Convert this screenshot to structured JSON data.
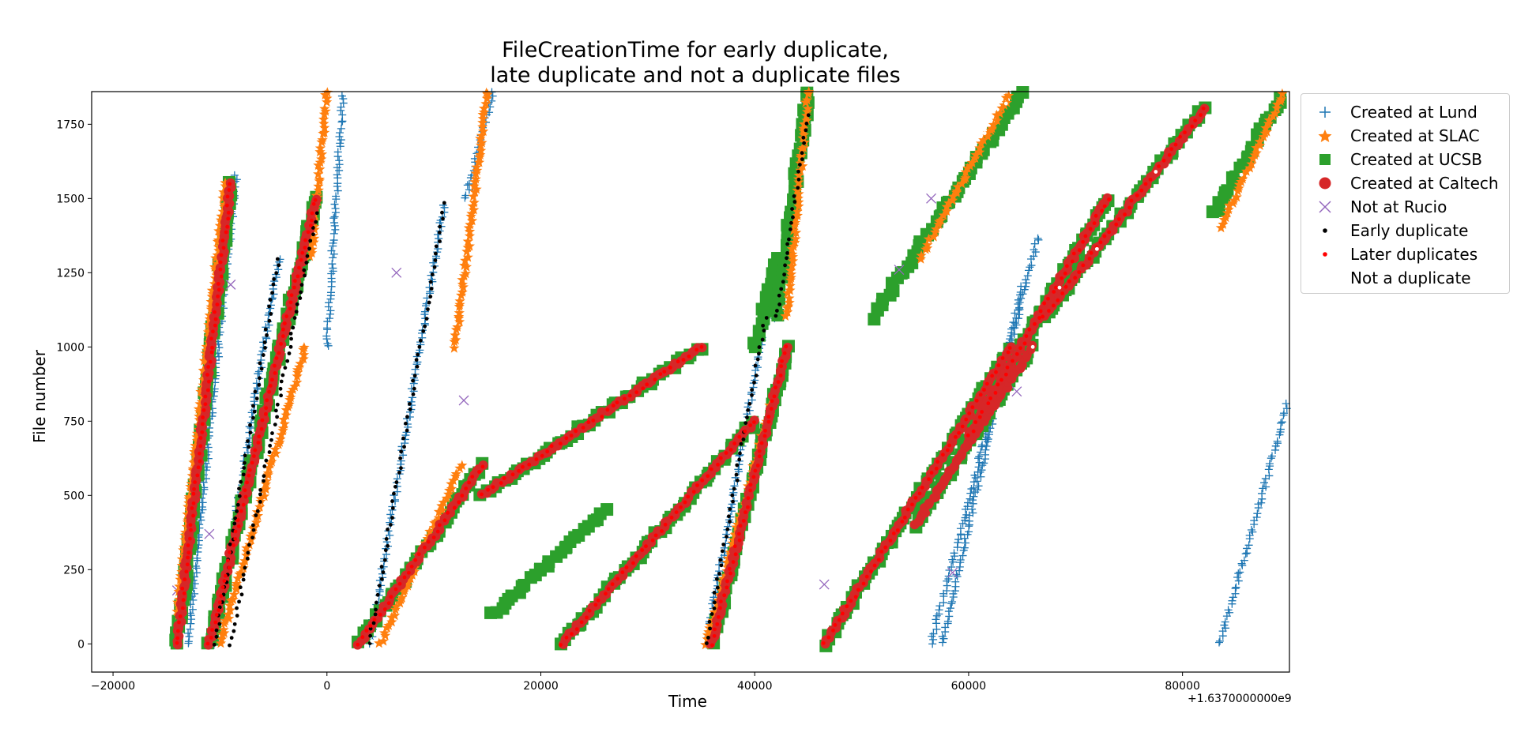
{
  "chart_data": {
    "type": "scatter",
    "title_line1": "FileCreationTime for early duplicate,",
    "title_line2": "late duplicate and not a duplicate files",
    "xlabel": "Time",
    "ylabel": "File number",
    "x_offset_label": "+1.6370000000e9",
    "xlim": [
      -22000,
      90000
    ],
    "ylim": [
      -95,
      1860
    ],
    "xticks": [
      -20000,
      0,
      20000,
      40000,
      60000,
      80000
    ],
    "xtick_labels": [
      "−20000",
      "0",
      "20000",
      "40000",
      "60000",
      "80000"
    ],
    "yticks": [
      0,
      250,
      500,
      750,
      1000,
      1250,
      1500,
      1750
    ],
    "ytick_labels": [
      "0",
      "250",
      "500",
      "750",
      "1000",
      "1250",
      "1500",
      "1750"
    ],
    "grid": false,
    "legend_placement": "outside right, top",
    "legend": [
      {
        "label": "Created at Lund",
        "marker": "plus",
        "color": "#1f77b4"
      },
      {
        "label": "Created at SLAC",
        "marker": "star",
        "color": "#ff7f0e"
      },
      {
        "label": "Created at UCSB",
        "marker": "square",
        "color": "#2ca02c"
      },
      {
        "label": "Created at Caltech",
        "marker": "circle",
        "color": "#d62728"
      },
      {
        "label": "Not at Rucio",
        "marker": "x",
        "color": "#9467bd"
      },
      {
        "label": "Early duplicate",
        "marker": "dot",
        "color": "#000000"
      },
      {
        "label": "Later duplicates",
        "marker": "dot",
        "color": "#ff0000"
      },
      {
        "label": "Not a duplicate",
        "marker": "dot",
        "color": "#ffffff"
      }
    ],
    "series": [
      {
        "name": "Created at Lund",
        "marker": "plus",
        "color": "#1f77b4",
        "segments": [
          [
            [
              -13000,
              0
            ],
            [
              -8500,
              1580
            ]
          ],
          [
            [
              -10500,
              0
            ],
            [
              -4500,
              1300
            ]
          ],
          [
            [
              0,
              1000
            ],
            [
              1500,
              1860
            ]
          ],
          [
            [
              4000,
              0
            ],
            [
              11000,
              1480
            ]
          ],
          [
            [
              13000,
              1500
            ],
            [
              15500,
              1860
            ]
          ],
          [
            [
              35500,
              0
            ],
            [
              41000,
              1100
            ]
          ],
          [
            [
              42000,
              1100
            ],
            [
              45000,
              1860
            ]
          ],
          [
            [
              56500,
              0
            ],
            [
              66500,
              1370
            ]
          ],
          [
            [
              57500,
              0
            ],
            [
              65000,
              1200
            ]
          ],
          [
            [
              83500,
              0
            ],
            [
              90000,
              830
            ]
          ]
        ]
      },
      {
        "name": "Created at SLAC",
        "marker": "star",
        "color": "#ff7f0e",
        "segments": [
          [
            [
              -14000,
              100
            ],
            [
              -9500,
              1550
            ]
          ],
          [
            [
              -10000,
              0
            ],
            [
              -2000,
              1000
            ]
          ],
          [
            [
              -1500,
              1300
            ],
            [
              0,
              1860
            ]
          ],
          [
            [
              5000,
              0
            ],
            [
              12500,
              600
            ]
          ],
          [
            [
              12000,
              1000
            ],
            [
              15000,
              1860
            ]
          ],
          [
            [
              35500,
              0
            ],
            [
              41500,
              800
            ]
          ],
          [
            [
              43000,
              1100
            ],
            [
              45000,
              1860
            ]
          ],
          [
            [
              55500,
              1300
            ],
            [
              64000,
              1860
            ]
          ],
          [
            [
              83500,
              1400
            ],
            [
              89500,
              1860
            ]
          ]
        ]
      },
      {
        "name": "Created at UCSB",
        "marker": "square",
        "color": "#2ca02c",
        "segments": [
          [
            [
              -14000,
              0
            ],
            [
              -9000,
              1550
            ]
          ],
          [
            [
              -11000,
              0
            ],
            [
              -1000,
              1500
            ]
          ],
          [
            [
              3000,
              0
            ],
            [
              14500,
              600
            ]
          ],
          [
            [
              14500,
              500
            ],
            [
              35000,
              1000
            ]
          ],
          [
            [
              15500,
              100
            ],
            [
              26000,
              450
            ]
          ],
          [
            [
              22000,
              0
            ],
            [
              40000,
              750
            ]
          ],
          [
            [
              36000,
              0
            ],
            [
              43000,
              1000
            ]
          ],
          [
            [
              40000,
              1000
            ],
            [
              42000,
              1300
            ]
          ],
          [
            [
              42000,
              1100
            ],
            [
              45000,
              1860
            ]
          ],
          [
            [
              46500,
              0
            ],
            [
              64000,
              1000
            ]
          ],
          [
            [
              51000,
              1100
            ],
            [
              65000,
              1860
            ]
          ],
          [
            [
              55000,
              400
            ],
            [
              66000,
              1000
            ]
          ],
          [
            [
              60000,
              700
            ],
            [
              73000,
              1500
            ]
          ],
          [
            [
              67000,
              1100
            ],
            [
              82000,
              1800
            ]
          ],
          [
            [
              83000,
              1450
            ],
            [
              89500,
              1860
            ]
          ]
        ]
      },
      {
        "name": "Created at Caltech",
        "marker": "circle",
        "color": "#d62728",
        "segments": [
          [
            [
              -14000,
              0
            ],
            [
              -9000,
              1550
            ]
          ],
          [
            [
              -11000,
              0
            ],
            [
              -1000,
              1500
            ]
          ],
          [
            [
              3000,
              0
            ],
            [
              14500,
              600
            ]
          ],
          [
            [
              14500,
              500
            ],
            [
              35000,
              1000
            ]
          ],
          [
            [
              22000,
              0
            ],
            [
              40000,
              750
            ]
          ],
          [
            [
              36000,
              0
            ],
            [
              43000,
              1000
            ]
          ],
          [
            [
              46500,
              0
            ],
            [
              64000,
              1000
            ]
          ],
          [
            [
              55000,
              400
            ],
            [
              66000,
              1000
            ]
          ],
          [
            [
              60000,
              700
            ],
            [
              73000,
              1500
            ]
          ],
          [
            [
              67000,
              1100
            ],
            [
              82000,
              1800
            ]
          ]
        ]
      },
      {
        "name": "Not at Rucio",
        "marker": "x",
        "color": "#9467bd",
        "points": [
          [
            -9000,
            1210
          ],
          [
            -11000,
            370
          ],
          [
            6500,
            1250
          ],
          [
            12800,
            820
          ],
          [
            46500,
            200
          ],
          [
            53500,
            1260
          ],
          [
            56500,
            1500
          ],
          [
            58500,
            240
          ],
          [
            64500,
            850
          ],
          [
            -14000,
            180
          ]
        ]
      },
      {
        "name": "Early duplicate",
        "marker": "dot",
        "color": "#000000",
        "segments": [
          [
            [
              -10500,
              0
            ],
            [
              -4500,
              1300
            ]
          ],
          [
            [
              4000,
              0
            ],
            [
              11000,
              1480
            ]
          ],
          [
            [
              35500,
              0
            ],
            [
              41000,
              1100
            ]
          ],
          [
            [
              42000,
              1100
            ],
            [
              45000,
              1780
            ]
          ],
          [
            [
              -9000,
              0
            ],
            [
              -1000,
              1450
            ]
          ]
        ]
      },
      {
        "name": "Later duplicates",
        "marker": "dot",
        "color": "#ff0000",
        "segments": [
          [
            [
              -14000,
              0
            ],
            [
              -9000,
              1550
            ]
          ],
          [
            [
              -11000,
              0
            ],
            [
              -1000,
              1500
            ]
          ],
          [
            [
              3000,
              0
            ],
            [
              14500,
              600
            ]
          ],
          [
            [
              14500,
              500
            ],
            [
              35000,
              1000
            ]
          ],
          [
            [
              22000,
              0
            ],
            [
              40000,
              750
            ]
          ],
          [
            [
              36000,
              0
            ],
            [
              43000,
              1000
            ]
          ],
          [
            [
              46500,
              0
            ],
            [
              64000,
              1000
            ]
          ],
          [
            [
              60000,
              700
            ],
            [
              73000,
              1500
            ]
          ],
          [
            [
              67000,
              1100
            ],
            [
              82000,
              1800
            ]
          ]
        ]
      },
      {
        "name": "Not a duplicate",
        "marker": "dot",
        "color": "#ffffff",
        "points": [
          [
            -6800,
            510
          ],
          [
            4200,
            10
          ],
          [
            29000,
            950
          ],
          [
            51000,
            330
          ],
          [
            66000,
            1000
          ],
          [
            68500,
            1200
          ],
          [
            72000,
            1330
          ],
          [
            77500,
            1590
          ],
          [
            85500,
            1580
          ],
          [
            63500,
            1820
          ],
          [
            61500,
            1720
          ]
        ]
      }
    ]
  }
}
